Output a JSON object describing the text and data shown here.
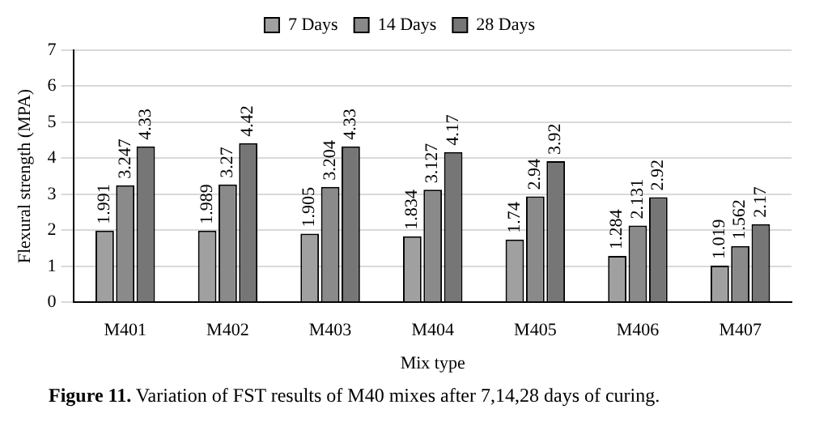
{
  "chart_data": {
    "type": "bar",
    "xlabel": "Mix type",
    "ylabel": "Flexural strength (MPA)",
    "categories": [
      "M401",
      "M402",
      "M403",
      "M404",
      "M405",
      "M406",
      "M407"
    ],
    "series": [
      {
        "name": "7 Days",
        "color": "#a0a0a0",
        "values": [
          1.991,
          1.989,
          1.905,
          1.834,
          1.74,
          1.284,
          1.019
        ]
      },
      {
        "name": "14 Days",
        "color": "#8a8a8a",
        "values": [
          3.247,
          3.27,
          3.204,
          3.127,
          2.94,
          2.131,
          1.562
        ]
      },
      {
        "name": "28 Days",
        "color": "#767676",
        "values": [
          4.33,
          4.42,
          4.33,
          4.17,
          3.92,
          2.92,
          2.17
        ]
      }
    ],
    "ylim": [
      0,
      7
    ],
    "yticks": [
      0,
      1,
      2,
      3,
      4,
      5,
      6,
      7
    ],
    "grid": "y",
    "legend": "top",
    "data_labels": true,
    "annotations": [
      "Figure 11. Variation of FST results of M40 mixes after 7,14,28 days of curing."
    ]
  }
}
